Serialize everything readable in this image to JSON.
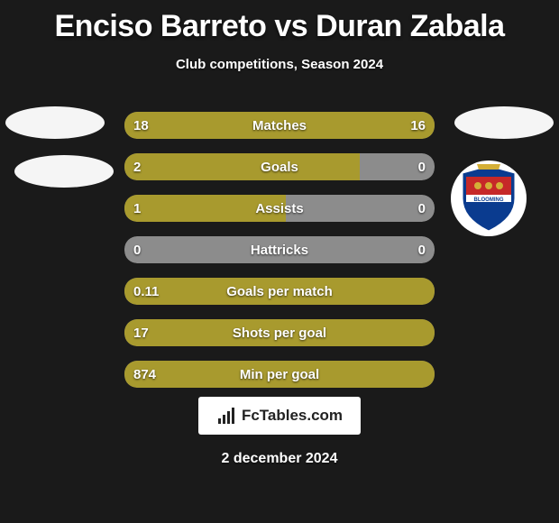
{
  "colors": {
    "background": "#1a1a1a",
    "bar_fill": "#a89a2e",
    "bar_track": "#8c8c8c",
    "text": "#ffffff",
    "badge_bg": "#f5f5f5",
    "crest_primary": "#0a3b8f",
    "crest_accent": "#c62828",
    "crest_gold": "#d4af37"
  },
  "header": {
    "player1": "Enciso Barreto",
    "vs": "vs",
    "player2": "Duran Zabala",
    "subtitle": "Club competitions, Season 2024"
  },
  "rows": [
    {
      "label": "Matches",
      "left": "18",
      "right": "16",
      "left_pct": 52,
      "right_pct": 48,
      "mode": "split"
    },
    {
      "label": "Goals",
      "left": "2",
      "right": "0",
      "left_pct": 76,
      "right_pct": 0,
      "mode": "split"
    },
    {
      "label": "Assists",
      "left": "1",
      "right": "0",
      "left_pct": 52,
      "right_pct": 0,
      "mode": "split"
    },
    {
      "label": "Hattricks",
      "left": "0",
      "right": "0",
      "left_pct": 0,
      "right_pct": 0,
      "mode": "split"
    },
    {
      "label": "Goals per match",
      "left": "0.11",
      "right": "",
      "left_pct": 100,
      "right_pct": 0,
      "mode": "full-left"
    },
    {
      "label": "Shots per goal",
      "left": "17",
      "right": "",
      "left_pct": 100,
      "right_pct": 0,
      "mode": "full-left"
    },
    {
      "label": "Min per goal",
      "left": "874",
      "right": "",
      "left_pct": 100,
      "right_pct": 0,
      "mode": "full-left"
    }
  ],
  "footer": {
    "site": "FcTables.com",
    "date": "2 december 2024"
  }
}
